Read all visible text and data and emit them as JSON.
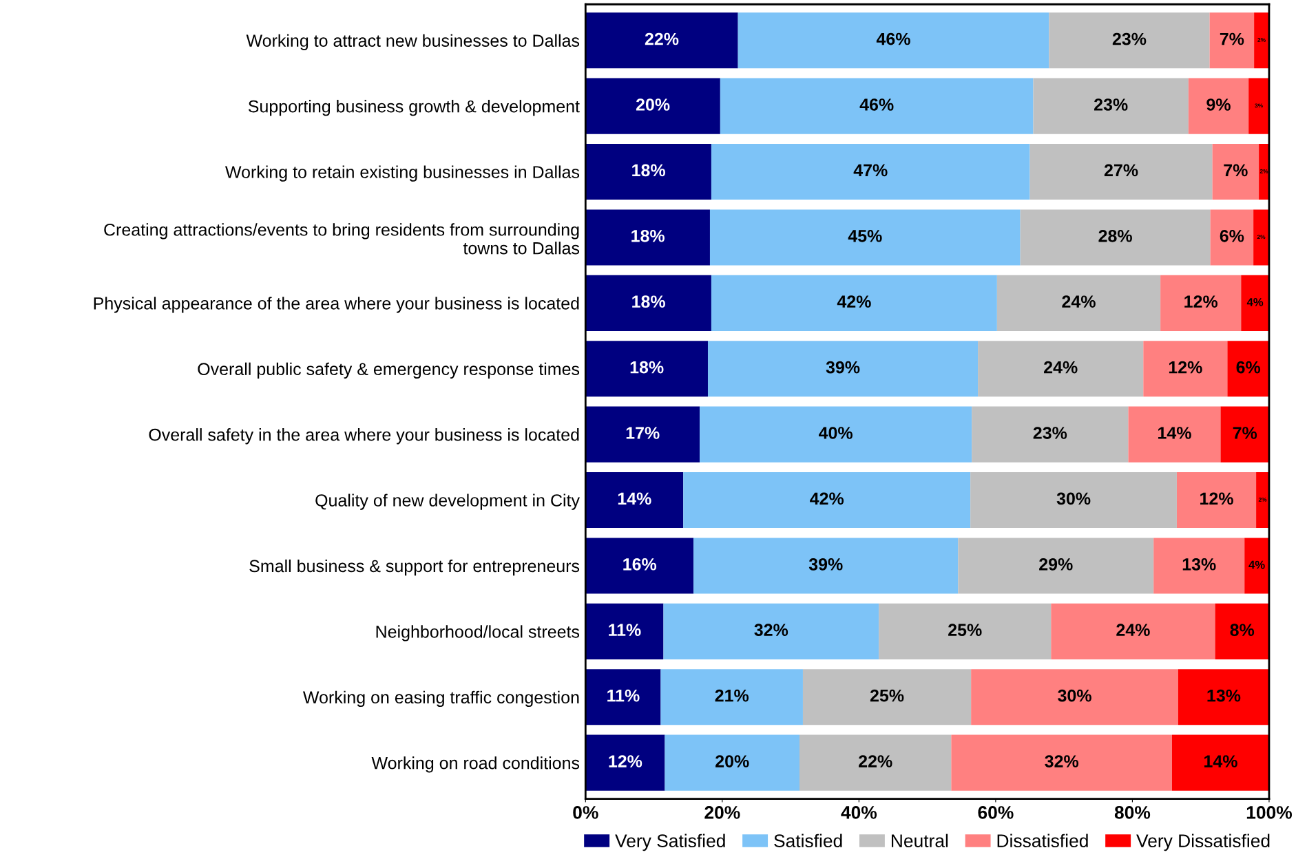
{
  "chart_data": {
    "type": "bar",
    "orientation": "horizontal",
    "stacked": true,
    "categories": [
      "Working to attract new businesses to Dallas",
      "Supporting business growth & development",
      "Working to retain existing businesses in Dallas",
      "Creating attractions/events to bring residents from surrounding\ntowns to Dallas",
      "Physical appearance of the area where your business is located",
      "Overall public safety & emergency response times",
      "Overall safety in the area where your business is located",
      "Quality of new development in City",
      "Small business & support for entrepreneurs",
      "Neighborhood/local streets",
      "Working on easing traffic congestion",
      "Working on road conditions"
    ],
    "series": [
      {
        "name": "Very Satisfied",
        "color": "#000080",
        "values": [
          22.3,
          19.7,
          18.4,
          18.2,
          18.4,
          17.9,
          16.7,
          14.3,
          15.8,
          11.4,
          11.0,
          11.6
        ],
        "value_labels": [
          "22%",
          "20%",
          "18%",
          "18%",
          "18%",
          "18%",
          "17%",
          "14%",
          "16%",
          "11%",
          "11%",
          "12%"
        ]
      },
      {
        "name": "Satisfied",
        "color": "#7dc3f7",
        "values": [
          45.5,
          45.8,
          46.6,
          45.4,
          41.8,
          39.5,
          39.8,
          42.0,
          38.7,
          31.5,
          20.8,
          19.7
        ],
        "value_labels": [
          "46%",
          "46%",
          "47%",
          "45%",
          "42%",
          "39%",
          "40%",
          "42%",
          "39%",
          "32%",
          "21%",
          "20%"
        ]
      },
      {
        "name": "Neutral",
        "color": "#c0c0c0",
        "values": [
          23.5,
          22.7,
          26.7,
          27.8,
          23.9,
          24.2,
          22.9,
          30.2,
          28.6,
          25.2,
          24.6,
          22.2
        ],
        "value_labels": [
          "23%",
          "23%",
          "27%",
          "28%",
          "24%",
          "24%",
          "23%",
          "30%",
          "29%",
          "25%",
          "25%",
          "22%"
        ]
      },
      {
        "name": "Dissatisfied",
        "color": "#ff8080",
        "values": [
          6.5,
          8.8,
          6.8,
          6.3,
          11.8,
          12.3,
          13.5,
          11.6,
          13.3,
          24.0,
          30.3,
          32.3
        ],
        "value_labels": [
          "7%",
          "9%",
          "7%",
          "6%",
          "12%",
          "12%",
          "14%",
          "12%",
          "13%",
          "24%",
          "30%",
          "32%"
        ]
      },
      {
        "name": "Very Dissatisfied",
        "color": "#ff0000",
        "values": [
          2.2,
          3.0,
          1.5,
          2.3,
          4.1,
          6.1,
          7.1,
          1.9,
          3.6,
          7.9,
          13.3,
          14.2
        ],
        "value_labels": [
          "2%",
          "3%",
          "2%",
          "2%",
          "4%",
          "6%",
          "7%",
          "2%",
          "4%",
          "8%",
          "13%",
          "14%"
        ]
      }
    ],
    "xlim": [
      0,
      100
    ],
    "xticks": [
      {
        "value": 0,
        "label": "0%"
      },
      {
        "value": 20,
        "label": "20%"
      },
      {
        "value": 40,
        "label": "40%"
      },
      {
        "value": 60,
        "label": "60%"
      },
      {
        "value": 80,
        "label": "80%"
      },
      {
        "value": 100,
        "label": "100%"
      }
    ],
    "grid": false,
    "legend": "bottom"
  }
}
